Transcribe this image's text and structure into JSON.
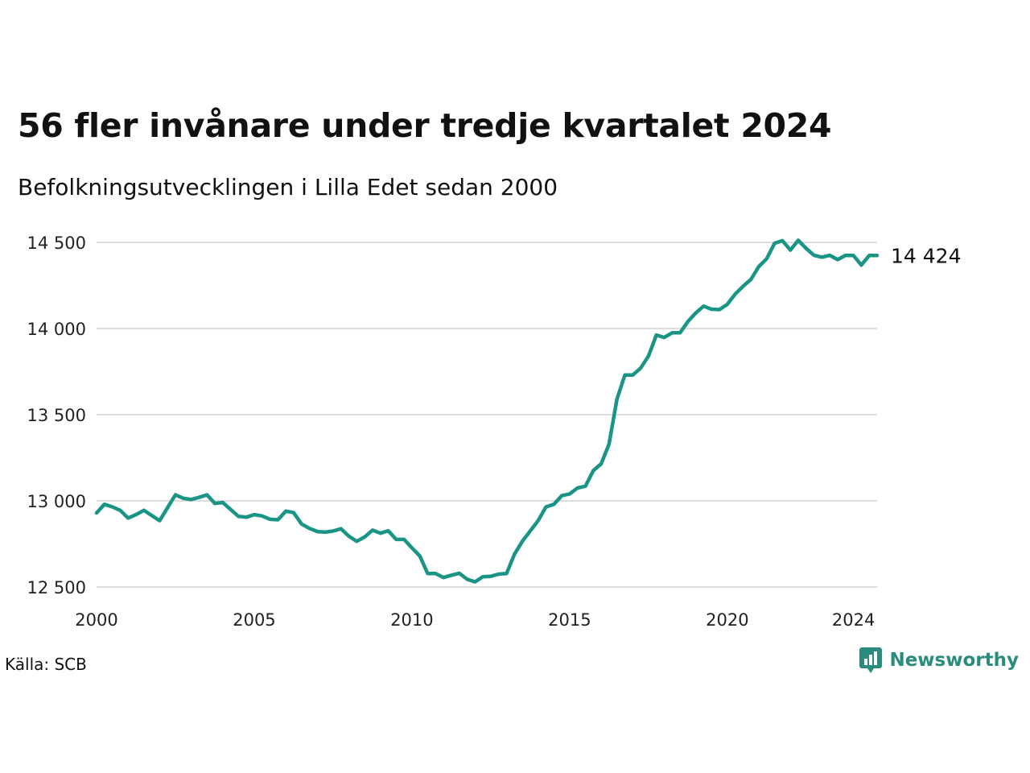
{
  "title": "56 fler invånare under tredje kvartalet 2024",
  "subtitle": "Befolkningsutvecklingen i Lilla Edet sedan 2000",
  "source": "Källa: SCB",
  "brand": {
    "name": "Newsworthy",
    "icon": "newsworthy-logo-icon",
    "color": "#2a8c7e"
  },
  "colors": {
    "line": "#1a9484",
    "grid": "#dddddd",
    "text": "#111111"
  },
  "chart_data": {
    "type": "line",
    "title": "56 fler invånare under tredje kvartalet 2024",
    "subtitle": "Befolkningsutvecklingen i Lilla Edet sedan 2000",
    "xlabel": "",
    "ylabel": "",
    "xlim": [
      2000,
      2024.75
    ],
    "ylim": [
      12500,
      14500
    ],
    "x_ticks": [
      2000,
      2005,
      2010,
      2015,
      2020,
      2024
    ],
    "x_tick_labels": [
      "2000",
      "2005",
      "2010",
      "2015",
      "2020",
      "2024"
    ],
    "y_ticks": [
      12500,
      13000,
      13500,
      14000,
      14500
    ],
    "y_tick_labels": [
      "12 500",
      "13 000",
      "13 500",
      "14 000",
      "14 500"
    ],
    "grid": true,
    "end_label": "14 424",
    "series": [
      {
        "name": "",
        "color": "#1a9484",
        "x": [
          2000.0,
          2000.25,
          2000.5,
          2000.75,
          2001.0,
          2001.25,
          2001.5,
          2001.75,
          2002.0,
          2002.25,
          2002.5,
          2002.75,
          2003.0,
          2003.25,
          2003.5,
          2003.75,
          2004.0,
          2004.25,
          2004.5,
          2004.75,
          2005.0,
          2005.25,
          2005.5,
          2005.75,
          2006.0,
          2006.25,
          2006.5,
          2006.75,
          2007.0,
          2007.25,
          2007.5,
          2007.75,
          2008.0,
          2008.25,
          2008.5,
          2008.75,
          2009.0,
          2009.25,
          2009.5,
          2009.75,
          2010.0,
          2010.25,
          2010.5,
          2010.75,
          2011.0,
          2011.25,
          2011.5,
          2011.75,
          2012.0,
          2012.25,
          2012.5,
          2012.75,
          2013.0,
          2013.25,
          2013.5,
          2013.75,
          2014.0,
          2014.25,
          2014.5,
          2014.75,
          2015.0,
          2015.25,
          2015.5,
          2015.75,
          2016.0,
          2016.25,
          2016.5,
          2016.75,
          2017.0,
          2017.25,
          2017.5,
          2017.75,
          2018.0,
          2018.25,
          2018.5,
          2018.75,
          2019.0,
          2019.25,
          2019.5,
          2019.75,
          2020.0,
          2020.25,
          2020.5,
          2020.75,
          2021.0,
          2021.25,
          2021.5,
          2021.75,
          2022.0,
          2022.25,
          2022.5,
          2022.75,
          2023.0,
          2023.25,
          2023.5,
          2023.75,
          2024.0,
          2024.25,
          2024.5,
          2024.75
        ],
        "y": [
          12930,
          12980,
          12965,
          12945,
          12900,
          12920,
          12945,
          12915,
          12885,
          12960,
          13035,
          13015,
          13008,
          13020,
          13035,
          12985,
          12990,
          12950,
          12910,
          12905,
          12920,
          12912,
          12893,
          12890,
          12940,
          12932,
          12866,
          12840,
          12822,
          12818,
          12825,
          12838,
          12795,
          12765,
          12790,
          12830,
          12812,
          12826,
          12776,
          12776,
          12727,
          12680,
          12578,
          12578,
          12555,
          12568,
          12580,
          12545,
          12530,
          12560,
          12562,
          12575,
          12578,
          12690,
          12765,
          12825,
          12885,
          12965,
          12980,
          13030,
          13040,
          13075,
          13085,
          13175,
          13215,
          13330,
          13590,
          13730,
          13730,
          13770,
          13840,
          13962,
          13948,
          13975,
          13975,
          14040,
          14090,
          14130,
          14112,
          14110,
          14140,
          14200,
          14245,
          14285,
          14360,
          14405,
          14495,
          14510,
          14455,
          14512,
          14465,
          14425,
          14414,
          14425,
          14400,
          14425,
          14424,
          14368,
          14424,
          14424
        ]
      }
    ]
  }
}
